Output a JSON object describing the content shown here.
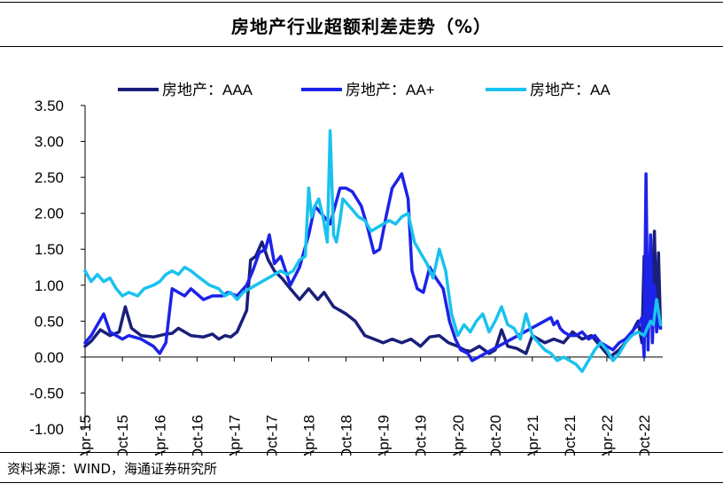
{
  "header": {
    "title": "房地产行业超额利差走势（%）"
  },
  "footer": {
    "source": "资料来源：WIND，海通证券研究所"
  },
  "colors": {
    "AAA": "#1a1f7a",
    "AA+": "#1c22e8",
    "AA": "#19c2ee"
  },
  "chart_data": {
    "type": "line",
    "title": "房地产行业超额利差走势（%）",
    "xlabel": "",
    "ylabel": "",
    "ylim": [
      -1.0,
      3.5
    ],
    "y_ticks": [
      "3.50",
      "3.00",
      "2.50",
      "2.00",
      "1.50",
      "1.00",
      "0.50",
      "0.00",
      "-0.50",
      "-1.00"
    ],
    "x_range": [
      "2015-04",
      "2022-12"
    ],
    "x_ticks": [
      "Apr-15",
      "Oct-15",
      "Apr-16",
      "Oct-16",
      "Apr-17",
      "Oct-17",
      "Apr-18",
      "Oct-18",
      "Apr-19",
      "Oct-19",
      "Apr-20",
      "Oct-20",
      "Apr-21",
      "Oct-21",
      "Apr-22",
      "Oct-22"
    ],
    "legend": {
      "placement": "top"
    },
    "grid": false,
    "series": [
      {
        "name": "房地产：AAA",
        "x": [
          "2015-04-01",
          "2015-05-01",
          "2015-06-15",
          "2015-08-01",
          "2015-09-15",
          "2015-10-15",
          "2015-11-15",
          "2016-01-01",
          "2016-03-01",
          "2016-04-01",
          "2016-05-01",
          "2016-06-01",
          "2016-07-01",
          "2016-09-01",
          "2016-11-01",
          "2016-12-15",
          "2017-01-15",
          "2017-02-15",
          "2017-03-15",
          "2017-04-15",
          "2017-06-01",
          "2017-06-20",
          "2017-07-15",
          "2017-08-15",
          "2017-09-15",
          "2017-10-15",
          "2017-11-20",
          "2018-01-01",
          "2018-02-15",
          "2018-04-01",
          "2018-05-15",
          "2018-06-15",
          "2018-08-01",
          "2018-09-01",
          "2018-10-01",
          "2018-11-15",
          "2019-01-01",
          "2019-02-15",
          "2019-04-01",
          "2019-05-15",
          "2019-07-01",
          "2019-08-15",
          "2019-10-01",
          "2019-11-15",
          "2020-01-01",
          "2020-02-15",
          "2020-04-01",
          "2020-05-01",
          "2020-06-01",
          "2020-07-15",
          "2020-09-01",
          "2020-10-01",
          "2020-11-01",
          "2020-12-01",
          "2021-01-15",
          "2021-03-01",
          "2021-04-01",
          "2021-06-01",
          "2021-07-15",
          "2021-09-01",
          "2021-10-15",
          "2021-12-01",
          "2022-01-15",
          "2022-03-01",
          "2022-04-15",
          "2022-06-01",
          "2022-07-15",
          "2022-09-01",
          "2022-09-20",
          "2022-10-01",
          "2022-10-10",
          "2022-10-20",
          "2022-11-01",
          "2022-11-10",
          "2022-11-20",
          "2022-12-01",
          "2022-12-10",
          "2022-12-20"
        ],
        "values": [
          0.15,
          0.22,
          0.38,
          0.3,
          0.35,
          0.7,
          0.4,
          0.3,
          0.28,
          0.3,
          0.32,
          0.33,
          0.4,
          0.3,
          0.28,
          0.32,
          0.25,
          0.3,
          0.28,
          0.35,
          0.65,
          1.35,
          1.4,
          1.6,
          1.35,
          1.2,
          1.1,
          0.95,
          0.8,
          0.95,
          0.8,
          0.9,
          0.7,
          0.65,
          0.6,
          0.5,
          0.3,
          0.25,
          0.2,
          0.25,
          0.2,
          0.25,
          0.15,
          0.28,
          0.3,
          0.2,
          0.15,
          0.1,
          0.08,
          0.15,
          0.05,
          0.1,
          0.38,
          0.15,
          0.12,
          0.05,
          0.3,
          0.2,
          0.25,
          0.2,
          0.35,
          0.25,
          0.3,
          0.15,
          0.0,
          0.1,
          0.25,
          0.5,
          0.2,
          1.4,
          0.3,
          1.3,
          0.5,
          1.0,
          1.75,
          0.4,
          1.45,
          0.4
        ]
      },
      {
        "name": "房地产：AA+",
        "x": [
          "2015-04-01",
          "2015-05-01",
          "2015-06-01",
          "2015-07-01",
          "2015-08-01",
          "2015-09-01",
          "2015-10-01",
          "2015-11-01",
          "2016-01-01",
          "2016-03-01",
          "2016-04-01",
          "2016-05-01",
          "2016-06-01",
          "2016-07-01",
          "2016-08-01",
          "2016-09-01",
          "2016-11-01",
          "2016-12-15",
          "2017-02-01",
          "2017-03-01",
          "2017-04-15",
          "2017-06-01",
          "2017-07-01",
          "2017-08-01",
          "2017-09-01",
          "2017-09-20",
          "2017-10-15",
          "2017-11-15",
          "2018-01-01",
          "2018-02-15",
          "2018-04-01",
          "2018-05-01",
          "2018-06-01",
          "2018-07-15",
          "2018-09-01",
          "2018-10-01",
          "2018-11-01",
          "2018-12-15",
          "2019-01-15",
          "2019-02-15",
          "2019-03-15",
          "2019-04-15",
          "2019-05-15",
          "2019-07-01",
          "2019-08-01",
          "2019-08-20",
          "2019-09-15",
          "2019-10-15",
          "2019-11-15",
          "2019-12-15",
          "2020-01-20",
          "2020-02-20",
          "2020-03-20",
          "2020-04-15",
          "2020-05-20",
          "2020-06-10",
          "2021-07-01",
          "2021-07-15",
          "2021-08-01",
          "2021-08-15",
          "2021-09-01",
          "2021-10-01",
          "2021-11-01",
          "2021-12-01",
          "2022-01-01",
          "2022-02-01",
          "2022-03-01",
          "2022-04-01",
          "2022-05-01",
          "2022-06-01",
          "2022-07-01",
          "2022-08-01",
          "2022-09-01",
          "2022-09-20",
          "2022-10-01",
          "2022-10-10",
          "2022-10-20",
          "2022-11-01",
          "2022-11-10",
          "2022-11-20",
          "2022-12-01",
          "2022-12-10",
          "2022-12-20"
        ],
        "values": [
          0.2,
          0.3,
          0.45,
          0.6,
          0.35,
          0.3,
          0.25,
          0.3,
          0.25,
          0.15,
          0.05,
          0.2,
          0.95,
          0.9,
          0.85,
          0.95,
          0.8,
          0.85,
          0.85,
          0.9,
          0.85,
          1.0,
          1.2,
          1.45,
          1.5,
          1.7,
          1.3,
          1.4,
          1.0,
          1.25,
          1.7,
          2.1,
          2.0,
          1.85,
          2.35,
          2.35,
          2.3,
          2.1,
          1.8,
          1.45,
          1.5,
          1.95,
          2.35,
          2.55,
          2.2,
          1.2,
          0.95,
          0.9,
          1.25,
          1.1,
          0.95,
          0.5,
          0.25,
          0.1,
          0.05,
          -0.05,
          0.55,
          0.45,
          0.5,
          0.4,
          0.35,
          0.3,
          0.3,
          0.35,
          0.25,
          0.3,
          0.2,
          0.15,
          0.1,
          0.2,
          0.25,
          0.35,
          0.45,
          0.55,
          0.0,
          2.55,
          0.1,
          1.7,
          0.2,
          1.0,
          0.35,
          0.6,
          0.4
        ]
      },
      {
        "name": "房地产：AA",
        "x": [
          "2015-04-01",
          "2015-05-01",
          "2015-06-01",
          "2015-07-01",
          "2015-08-01",
          "2015-09-01",
          "2015-10-01",
          "2015-11-01",
          "2015-12-15",
          "2016-01-15",
          "2016-03-01",
          "2016-04-01",
          "2016-05-01",
          "2016-06-01",
          "2016-07-01",
          "2016-08-01",
          "2016-09-01",
          "2016-10-15",
          "2016-12-01",
          "2017-01-15",
          "2017-02-15",
          "2017-03-15",
          "2017-04-15",
          "2017-05-15",
          "2017-06-15",
          "2017-07-15",
          "2017-08-15",
          "2017-09-15",
          "2017-10-15",
          "2017-11-15",
          "2017-12-15",
          "2018-01-15",
          "2018-02-15",
          "2018-03-15",
          "2018-04-01",
          "2018-04-15",
          "2018-05-01",
          "2018-05-20",
          "2018-06-10",
          "2018-07-01",
          "2018-07-15",
          "2018-08-01",
          "2018-08-15",
          "2018-09-01",
          "2018-09-15",
          "2018-10-01",
          "2018-11-01",
          "2018-12-01",
          "2019-01-01",
          "2019-02-01",
          "2019-03-01",
          "2019-04-01",
          "2019-05-01",
          "2019-06-01",
          "2019-07-01",
          "2019-08-01",
          "2019-09-01",
          "2019-10-01",
          "2019-11-01",
          "2019-12-01",
          "2020-01-01",
          "2020-02-01",
          "2020-03-01",
          "2020-04-01",
          "2020-05-01",
          "2020-06-01",
          "2020-07-01",
          "2020-08-01",
          "2020-09-01",
          "2020-10-01",
          "2020-11-01",
          "2020-12-01",
          "2021-01-01",
          "2021-02-01",
          "2021-03-01",
          "2021-04-01",
          "2021-05-01",
          "2021-06-01",
          "2021-07-01",
          "2021-08-01",
          "2021-09-01",
          "2021-10-01",
          "2021-11-01",
          "2021-12-01",
          "2022-01-01",
          "2022-02-01",
          "2022-03-01",
          "2022-04-01",
          "2022-05-01",
          "2022-06-01",
          "2022-07-01",
          "2022-08-01",
          "2022-09-01",
          "2022-10-01",
          "2022-10-15",
          "2022-11-01",
          "2022-11-15",
          "2022-12-01",
          "2022-12-20"
        ],
        "values": [
          1.2,
          1.05,
          1.15,
          1.05,
          1.1,
          0.95,
          0.85,
          0.9,
          0.85,
          0.95,
          1.0,
          1.05,
          1.15,
          1.2,
          1.15,
          1.25,
          1.2,
          1.1,
          1.0,
          0.95,
          0.85,
          0.9,
          0.8,
          0.9,
          0.95,
          1.0,
          1.05,
          1.1,
          1.15,
          1.2,
          1.15,
          1.2,
          1.35,
          1.4,
          2.35,
          1.95,
          2.1,
          2.2,
          1.95,
          1.6,
          3.15,
          1.7,
          1.6,
          1.9,
          2.2,
          2.15,
          2.05,
          1.95,
          1.9,
          1.75,
          1.8,
          1.85,
          1.9,
          1.85,
          1.95,
          2.0,
          1.6,
          1.45,
          1.3,
          1.1,
          1.5,
          1.2,
          0.6,
          0.3,
          0.45,
          0.35,
          0.5,
          0.6,
          0.35,
          0.5,
          0.7,
          0.45,
          0.4,
          0.25,
          0.6,
          0.3,
          0.2,
          0.1,
          0.05,
          -0.05,
          0.0,
          -0.05,
          -0.1,
          -0.2,
          -0.05,
          0.1,
          0.2,
          0.1,
          -0.05,
          0.05,
          0.2,
          0.3,
          0.35,
          0.3,
          0.4,
          0.5,
          0.45,
          0.8,
          0.45
        ]
      }
    ]
  }
}
